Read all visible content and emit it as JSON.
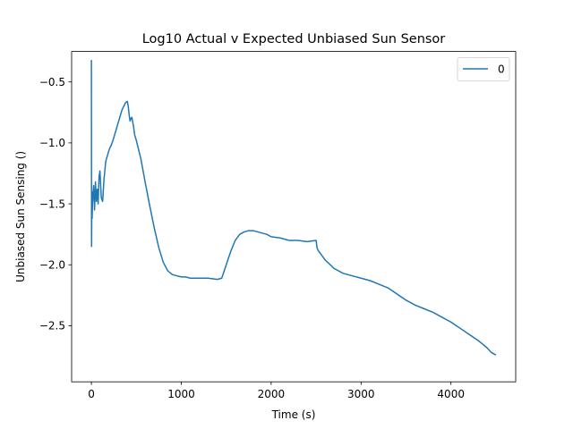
{
  "chart_data": {
    "type": "line",
    "title": "Log10 Actual v Expected Unbiased Sun Sensor",
    "xlabel": "Time (s)",
    "ylabel": "Unbiased Sun Sensing ()",
    "xlim": [
      -220,
      4720
    ],
    "ylim": [
      -2.96,
      -0.25
    ],
    "xticks": [
      0,
      1000,
      2000,
      3000,
      4000
    ],
    "xtick_labels": [
      "0",
      "1000",
      "2000",
      "3000",
      "4000"
    ],
    "yticks": [
      -0.5,
      -1.0,
      -1.5,
      -2.0,
      -2.5
    ],
    "ytick_labels": [
      "−0.5",
      "−1.0",
      "−1.5",
      "−2.0",
      "−2.5"
    ],
    "grid": false,
    "legend": "top-right",
    "series": [
      {
        "name": "0",
        "color": "#1f77b4",
        "x": [
          0,
          2,
          5,
          8,
          12,
          18,
          25,
          35,
          45,
          55,
          65,
          75,
          85,
          95,
          110,
          125,
          140,
          160,
          180,
          200,
          220,
          240,
          260,
          280,
          300,
          320,
          340,
          360,
          380,
          400,
          410,
          420,
          430,
          440,
          450,
          460,
          470,
          480,
          500,
          550,
          600,
          650,
          700,
          750,
          800,
          850,
          900,
          950,
          1000,
          1050,
          1100,
          1200,
          1300,
          1400,
          1450,
          1500,
          1550,
          1600,
          1650,
          1700,
          1750,
          1800,
          1850,
          1900,
          1950,
          2000,
          2100,
          2200,
          2300,
          2400,
          2500,
          2510,
          2520,
          2530,
          2540,
          2560,
          2600,
          2700,
          2800,
          2900,
          3000,
          3100,
          3200,
          3300,
          3400,
          3500,
          3600,
          3700,
          3800,
          3900,
          4000,
          4100,
          4200,
          4300,
          4400,
          4450,
          4500
        ],
        "y": [
          -0.32,
          -1.85,
          -1.4,
          -1.62,
          -1.5,
          -1.42,
          -1.35,
          -1.55,
          -1.32,
          -1.48,
          -1.38,
          -1.5,
          -1.28,
          -1.23,
          -1.45,
          -1.48,
          -1.3,
          -1.15,
          -1.1,
          -1.05,
          -1.02,
          -0.98,
          -0.93,
          -0.88,
          -0.83,
          -0.78,
          -0.73,
          -0.7,
          -0.67,
          -0.66,
          -0.7,
          -0.77,
          -0.82,
          -0.8,
          -0.79,
          -0.83,
          -0.87,
          -0.93,
          -0.98,
          -1.13,
          -1.33,
          -1.52,
          -1.7,
          -1.86,
          -1.98,
          -2.05,
          -2.08,
          -2.09,
          -2.1,
          -2.1,
          -2.11,
          -2.11,
          -2.11,
          -2.12,
          -2.11,
          -2.0,
          -1.89,
          -1.8,
          -1.75,
          -1.73,
          -1.72,
          -1.72,
          -1.73,
          -1.74,
          -1.75,
          -1.77,
          -1.78,
          -1.8,
          -1.8,
          -1.81,
          -1.8,
          -1.86,
          -1.88,
          -1.89,
          -1.9,
          -1.92,
          -1.96,
          -2.03,
          -2.07,
          -2.09,
          -2.11,
          -2.13,
          -2.16,
          -2.19,
          -2.24,
          -2.29,
          -2.33,
          -2.36,
          -2.39,
          -2.43,
          -2.47,
          -2.52,
          -2.57,
          -2.62,
          -2.68,
          -2.72,
          -2.74
        ]
      }
    ]
  }
}
